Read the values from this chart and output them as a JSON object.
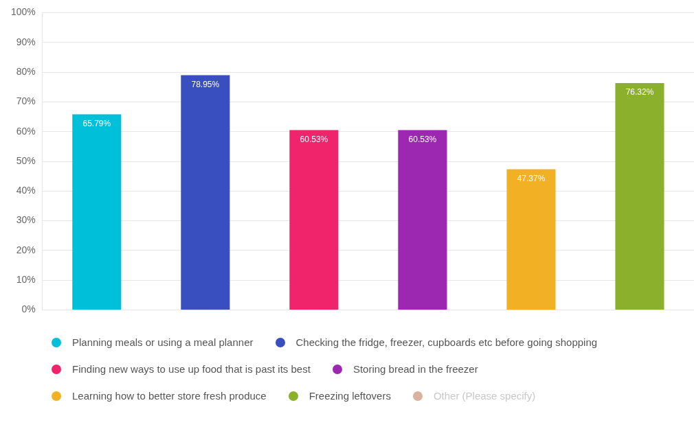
{
  "chart_data": {
    "type": "bar",
    "categories": [
      null,
      null,
      null,
      null,
      null,
      null
    ],
    "series": [
      {
        "name": "Planning meals or using a meal planner",
        "color": "#00c0d9",
        "values": [
          65.79,
          null,
          null,
          null,
          null,
          null
        ],
        "value_labels": [
          "65.79%",
          null,
          null,
          null,
          null,
          null
        ]
      },
      {
        "name": "Checking the fridge, freezer, cupboards etc before going shopping",
        "color": "#3a4fbf",
        "values": [
          null,
          78.95,
          null,
          null,
          null,
          null
        ],
        "value_labels": [
          null,
          "78.95%",
          null,
          null,
          null,
          null
        ]
      },
      {
        "name": "Finding new ways to use up food that is past its best",
        "color": "#f0246a",
        "values": [
          null,
          null,
          60.53,
          null,
          null,
          null
        ],
        "value_labels": [
          null,
          null,
          "60.53%",
          null,
          null,
          null
        ]
      },
      {
        "name": "Storing bread in the freezer",
        "color": "#9c27b0",
        "values": [
          null,
          null,
          null,
          60.53,
          null,
          null
        ],
        "value_labels": [
          null,
          null,
          null,
          "60.53%",
          null,
          null
        ]
      },
      {
        "name": "Learning how to better store fresh produce",
        "color": "#f2b024",
        "values": [
          null,
          null,
          null,
          null,
          47.37,
          null
        ],
        "value_labels": [
          null,
          null,
          null,
          null,
          "47.37%",
          null
        ]
      },
      {
        "name": "Freezing leftovers",
        "color": "#8bb02b",
        "values": [
          null,
          null,
          null,
          null,
          null,
          76.32
        ],
        "value_labels": [
          null,
          null,
          null,
          null,
          null,
          "76.32%"
        ]
      },
      {
        "name": "Other (Please specify)",
        "color": "#d9b3a0",
        "values": [
          null,
          null,
          null,
          null,
          null,
          null
        ]
      }
    ],
    "ylim": [
      0,
      100
    ],
    "yticks": [
      {
        "value": 0,
        "label": "0%"
      },
      {
        "value": 10,
        "label": "10%"
      },
      {
        "value": 20,
        "label": "20%"
      },
      {
        "value": 30,
        "label": "30%"
      },
      {
        "value": 40,
        "label": "40%"
      },
      {
        "value": 50,
        "label": "50%"
      },
      {
        "value": 60,
        "label": "60%"
      },
      {
        "value": 70,
        "label": "70%"
      },
      {
        "value": 80,
        "label": "80%"
      },
      {
        "value": 90,
        "label": "90%"
      },
      {
        "value": 100,
        "label": "100%"
      }
    ],
    "grid": "y",
    "legend": "bottom"
  }
}
